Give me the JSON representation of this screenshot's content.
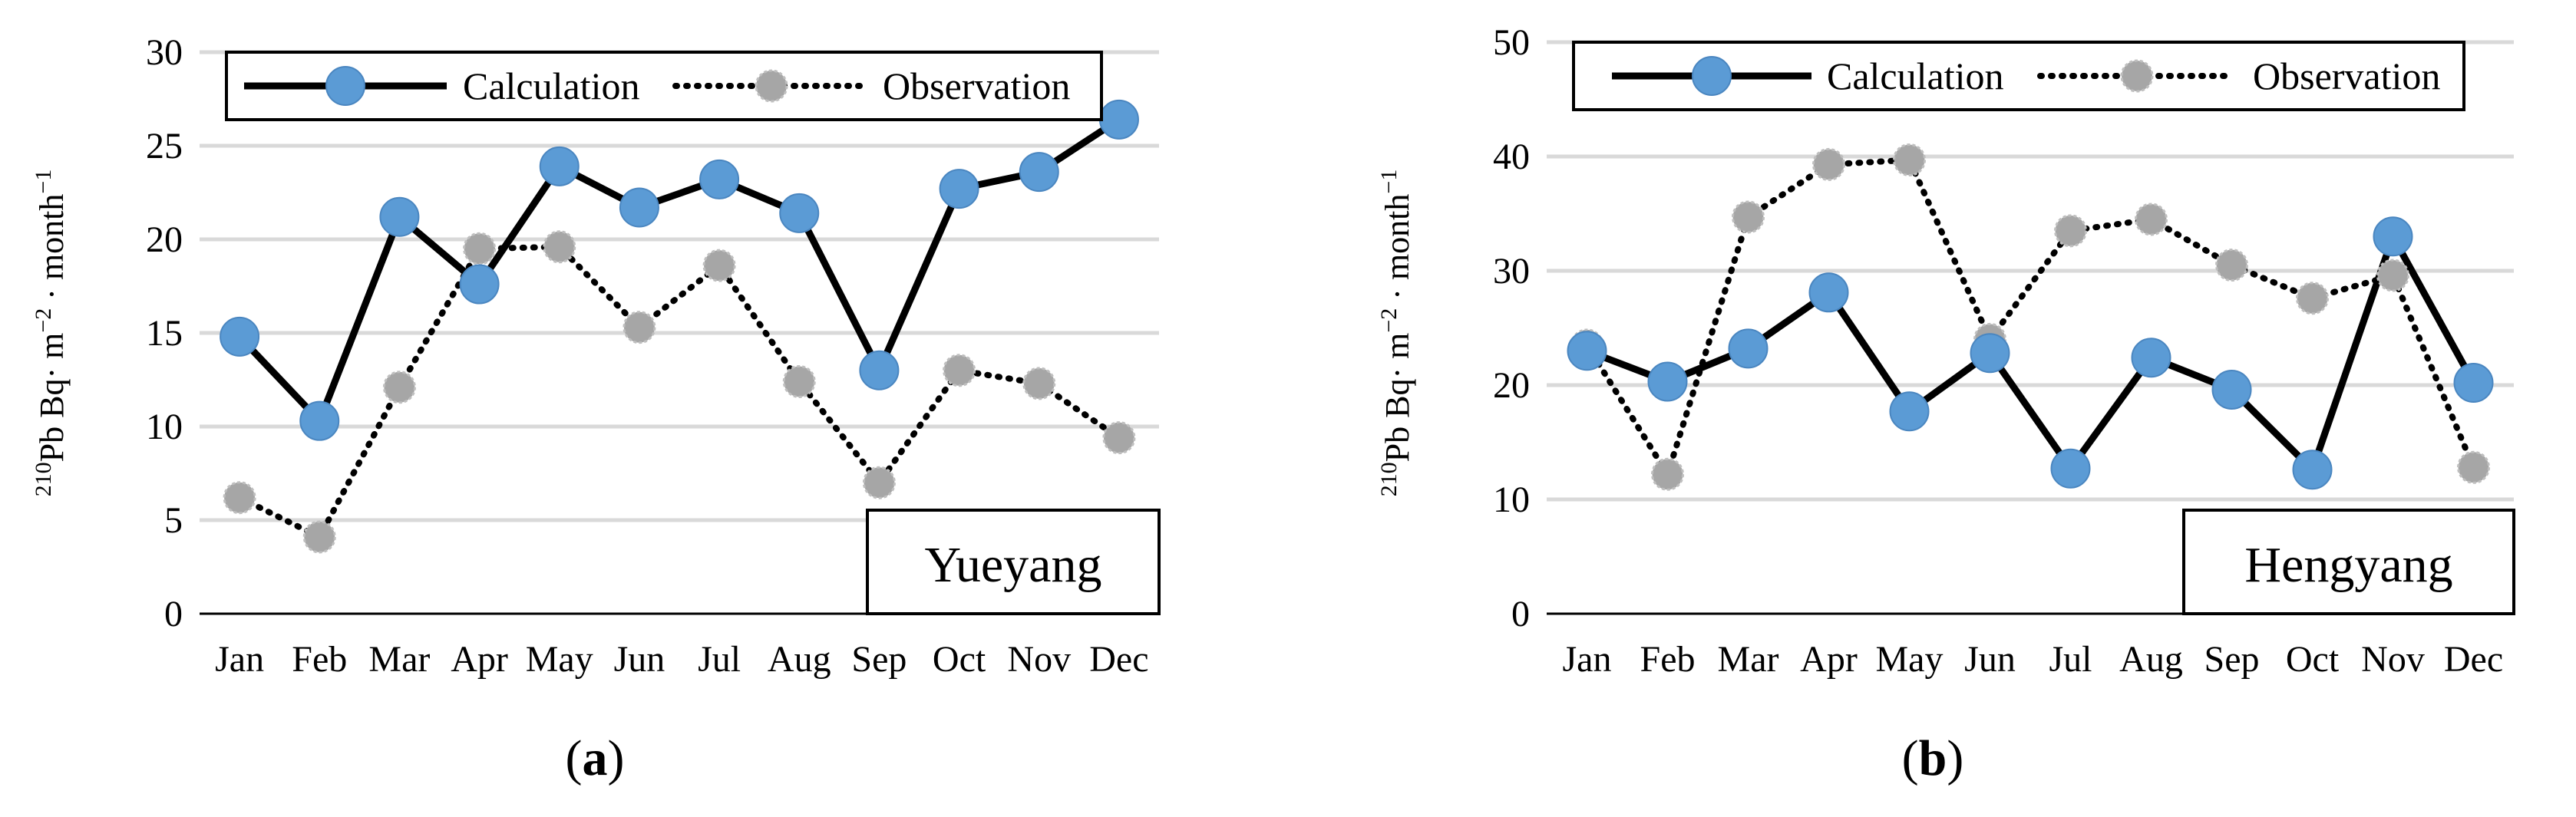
{
  "chart_data": [
    {
      "type": "line",
      "panel_label": "a",
      "location": "Yueyang",
      "categories": [
        "Jan",
        "Feb",
        "Mar",
        "Apr",
        "May",
        "Jun",
        "Jul",
        "Aug",
        "Sep",
        "Oct",
        "Nov",
        "Dec"
      ],
      "series": [
        {
          "name": "Calculation",
          "values": [
            14.8,
            10.3,
            21.2,
            17.6,
            23.9,
            21.7,
            23.2,
            21.4,
            13.0,
            22.7,
            23.6,
            26.4
          ]
        },
        {
          "name": "Observation",
          "values": [
            6.2,
            4.1,
            12.1,
            19.5,
            19.6,
            15.3,
            18.6,
            12.4,
            7.0,
            13.0,
            12.3,
            9.4
          ]
        }
      ],
      "ylabel_parts": {
        "sup": "210",
        "main": "Pb Bq· m",
        "exp1": "−2",
        "mid": " · month",
        "exp2": "−1"
      },
      "ylim": [
        0,
        30
      ],
      "yticks": [
        "0",
        "5",
        "10",
        "15",
        "20",
        "25",
        "30"
      ],
      "colors": {
        "calculation": "#5b9bd5",
        "observation": "#a6a6a6"
      }
    },
    {
      "type": "line",
      "panel_label": "b",
      "location": "Hengyang",
      "categories": [
        "Jan",
        "Feb",
        "Mar",
        "Apr",
        "May",
        "Jun",
        "Jul",
        "Aug",
        "Sep",
        "Oct",
        "Nov",
        "Dec"
      ],
      "series": [
        {
          "name": "Calculation",
          "values": [
            23.0,
            20.3,
            23.2,
            28.1,
            17.7,
            22.8,
            12.7,
            22.4,
            19.6,
            12.6,
            33.0,
            20.2
          ]
        },
        {
          "name": "Observation",
          "values": [
            23.5,
            12.2,
            34.7,
            39.3,
            39.7,
            24.0,
            33.5,
            34.5,
            30.5,
            27.6,
            29.6,
            12.8
          ]
        }
      ],
      "ylabel_parts": {
        "sup": "210",
        "main": "Pb Bq· m",
        "exp1": "−2",
        "mid": " · month",
        "exp2": "−1"
      },
      "ylim": [
        0,
        50
      ],
      "yticks": [
        "0",
        "10",
        "20",
        "30",
        "40",
        "50"
      ],
      "colors": {
        "calculation": "#5b9bd5",
        "observation": "#a6a6a6"
      }
    }
  ]
}
